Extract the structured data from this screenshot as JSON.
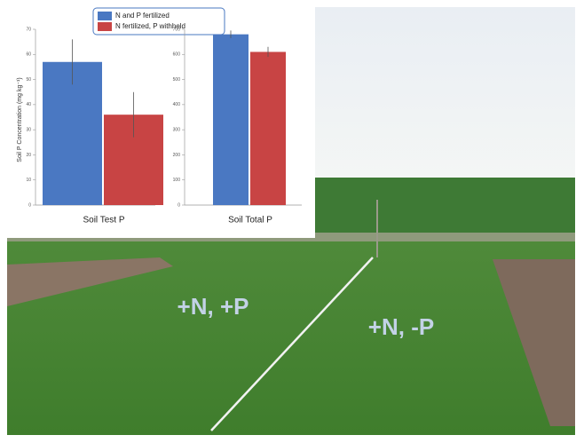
{
  "chart_data": {
    "type": "bar",
    "ylabel": "Soil P Concentration (mg kg⁻¹)",
    "series": [
      {
        "name": "N and P fertilized",
        "color": "#4a78c2"
      },
      {
        "name": "N fertilized, P withheld",
        "color": "#c84444"
      }
    ],
    "panels": [
      {
        "category": "Soil Test P",
        "ylim": [
          0,
          70
        ],
        "yticks": [
          0,
          10,
          20,
          30,
          40,
          50,
          60,
          70
        ],
        "values": [
          57,
          36
        ],
        "errors": [
          9,
          9
        ]
      },
      {
        "category": "Soil Total P",
        "ylim": [
          0,
          700
        ],
        "yticks": [
          0,
          100,
          200,
          300,
          400,
          500,
          600,
          700
        ],
        "values": [
          680,
          610
        ],
        "errors": [
          15,
          20
        ]
      }
    ]
  },
  "photo_labels": [
    "+N, +P",
    "+N, -P"
  ]
}
